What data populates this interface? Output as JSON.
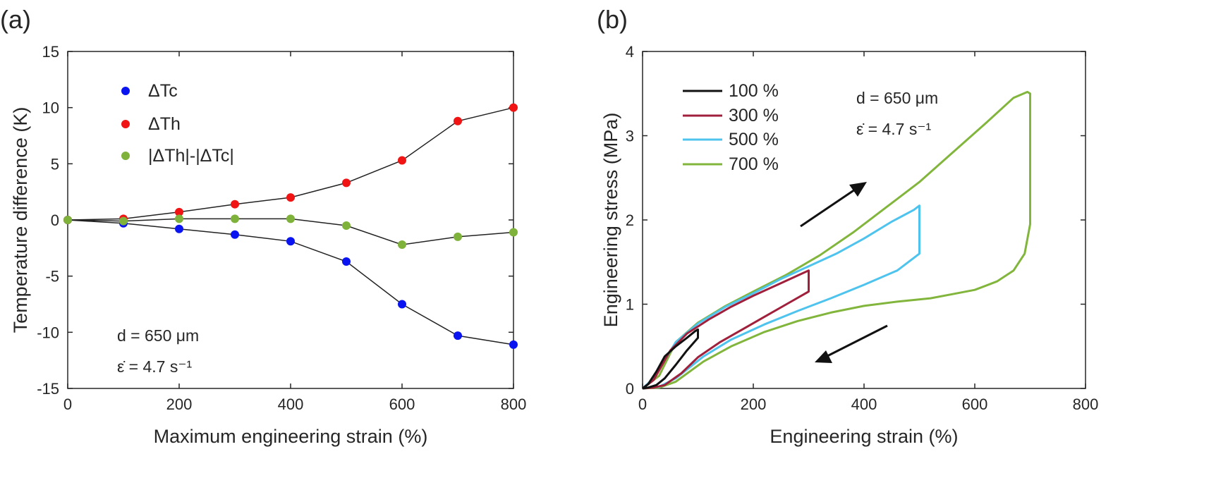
{
  "colors": {
    "blue": "#0a14f0",
    "red": "#f01414",
    "green": "#7fb23a",
    "black": "#111111",
    "maroon": "#a0203c",
    "cyan": "#4ec3ee",
    "olive": "#82b53c"
  },
  "chart_data": [
    {
      "panel_label": "(a)",
      "type": "line",
      "xlabel": "Maximum engineering strain (%)",
      "ylabel": "Temperature difference (K)",
      "xlim": [
        0,
        800
      ],
      "ylim": [
        -15,
        15
      ],
      "xticks": [
        "0",
        "200",
        "400",
        "600",
        "800"
      ],
      "yticks": [
        "-15",
        "-10",
        "-5",
        "0",
        "5",
        "10",
        "15"
      ],
      "x": [
        0,
        100,
        200,
        300,
        400,
        500,
        600,
        700,
        800
      ],
      "series": [
        {
          "name": "ΔTc",
          "color": "#0a14f0",
          "values": [
            0,
            -0.3,
            -0.8,
            -1.3,
            -1.9,
            -3.7,
            -7.5,
            -10.3,
            -11.1
          ]
        },
        {
          "name": "ΔTh",
          "color": "#f01414",
          "values": [
            0,
            0.1,
            0.7,
            1.4,
            2.0,
            3.3,
            5.3,
            8.8,
            10.0
          ]
        },
        {
          "name": "|ΔTh|-|ΔTc|",
          "color": "#7fb23a",
          "values": [
            0,
            -0.1,
            0.1,
            0.1,
            0.1,
            -0.5,
            -2.2,
            -1.5,
            -1.1
          ]
        }
      ],
      "legend_location": "top-left",
      "annotations": [
        "d = 650 μm",
        "ε̇ = 4.7 s⁻¹"
      ],
      "grid": false
    },
    {
      "panel_label": "(b)",
      "type": "line",
      "xlabel": "Engineering strain (%)",
      "ylabel": "Engineering stress (MPa)",
      "xlim": [
        0,
        800
      ],
      "ylim": [
        0,
        4
      ],
      "xticks": [
        "0",
        "200",
        "400",
        "600",
        "800"
      ],
      "yticks": [
        "0",
        "1",
        "2",
        "3",
        "4"
      ],
      "series": [
        {
          "name": "100 %",
          "color": "#111111",
          "x": [
            0,
            10,
            25,
            40,
            60,
            80,
            95,
            100,
            100,
            80,
            60,
            40,
            25,
            10,
            0
          ],
          "y": [
            0,
            0.05,
            0.2,
            0.38,
            0.5,
            0.6,
            0.68,
            0.7,
            0.6,
            0.45,
            0.28,
            0.12,
            0.04,
            0.01,
            0
          ]
        },
        {
          "name": "300 %",
          "color": "#a0203c",
          "x": [
            0,
            20,
            50,
            80,
            120,
            160,
            200,
            250,
            290,
            300,
            300,
            260,
            220,
            180,
            140,
            100,
            70,
            40,
            20,
            0
          ],
          "y": [
            0,
            0.1,
            0.45,
            0.65,
            0.82,
            0.97,
            1.1,
            1.25,
            1.37,
            1.4,
            1.15,
            1.0,
            0.85,
            0.7,
            0.55,
            0.37,
            0.18,
            0.04,
            0.01,
            0
          ]
        },
        {
          "name": "500 %",
          "color": "#4ec3ee",
          "x": [
            0,
            20,
            60,
            100,
            150,
            200,
            250,
            300,
            350,
            400,
            450,
            490,
            500,
            500,
            460,
            400,
            340,
            280,
            220,
            160,
            110,
            60,
            30,
            0
          ],
          "y": [
            0,
            0.12,
            0.55,
            0.77,
            0.97,
            1.13,
            1.3,
            1.45,
            1.6,
            1.78,
            1.98,
            2.12,
            2.17,
            1.6,
            1.4,
            1.23,
            1.07,
            0.92,
            0.76,
            0.58,
            0.38,
            0.12,
            0.02,
            0
          ]
        },
        {
          "name": "700 %",
          "color": "#82b53c",
          "x": [
            0,
            30,
            60,
            100,
            150,
            200,
            260,
            320,
            380,
            440,
            500,
            560,
            620,
            670,
            695,
            700,
            700,
            690,
            670,
            640,
            600,
            560,
            520,
            460,
            400,
            340,
            280,
            220,
            160,
            110,
            60,
            30,
            0
          ],
          "y": [
            0,
            0.15,
            0.55,
            0.78,
            0.98,
            1.15,
            1.35,
            1.58,
            1.85,
            2.15,
            2.45,
            2.8,
            3.15,
            3.45,
            3.52,
            3.5,
            1.95,
            1.6,
            1.4,
            1.27,
            1.17,
            1.12,
            1.07,
            1.03,
            0.98,
            0.9,
            0.8,
            0.67,
            0.5,
            0.32,
            0.08,
            0.01,
            0
          ]
        }
      ],
      "legend_location": "top-left",
      "annotations": [
        "d = 650 μm",
        "ε̇ = 4.7 s⁻¹"
      ],
      "grid": false
    }
  ]
}
